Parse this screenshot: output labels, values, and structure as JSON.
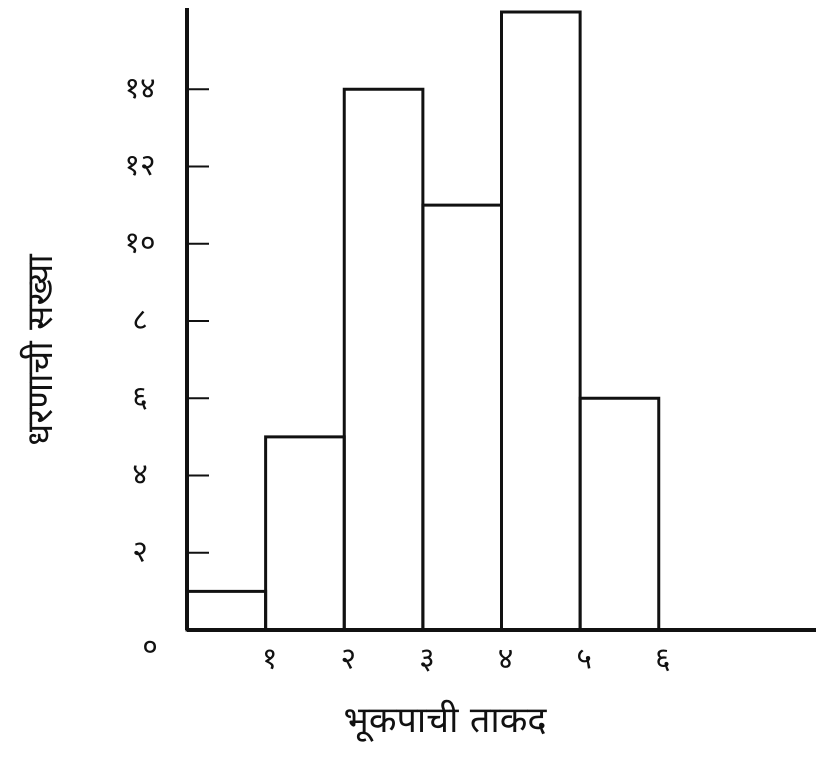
{
  "chart_data": {
    "type": "histogram",
    "xlabel": "भूकपाची ताकद",
    "ylabel": "धरणाची सख्या",
    "bins": [
      0,
      1,
      2,
      3,
      4,
      5,
      6
    ],
    "values": [
      1,
      5,
      14,
      11,
      16,
      6
    ],
    "color": "#111111",
    "xlim": [
      0,
      8
    ],
    "ylim": [
      0,
      16
    ],
    "xticks": [
      {
        "value": 1,
        "label": "१"
      },
      {
        "value": 2,
        "label": "२"
      },
      {
        "value": 3,
        "label": "३"
      },
      {
        "value": 4,
        "label": "४"
      },
      {
        "value": 5,
        "label": "५"
      },
      {
        "value": 6,
        "label": "६"
      }
    ],
    "yticks": [
      {
        "value": 0,
        "label": "०"
      },
      {
        "value": 2,
        "label": "२"
      },
      {
        "value": 4,
        "label": "४"
      },
      {
        "value": 6,
        "label": "६"
      },
      {
        "value": 8,
        "label": "८"
      },
      {
        "value": 10,
        "label": "१०"
      },
      {
        "value": 12,
        "label": "१२"
      },
      {
        "value": 14,
        "label": "१४"
      }
    ]
  }
}
